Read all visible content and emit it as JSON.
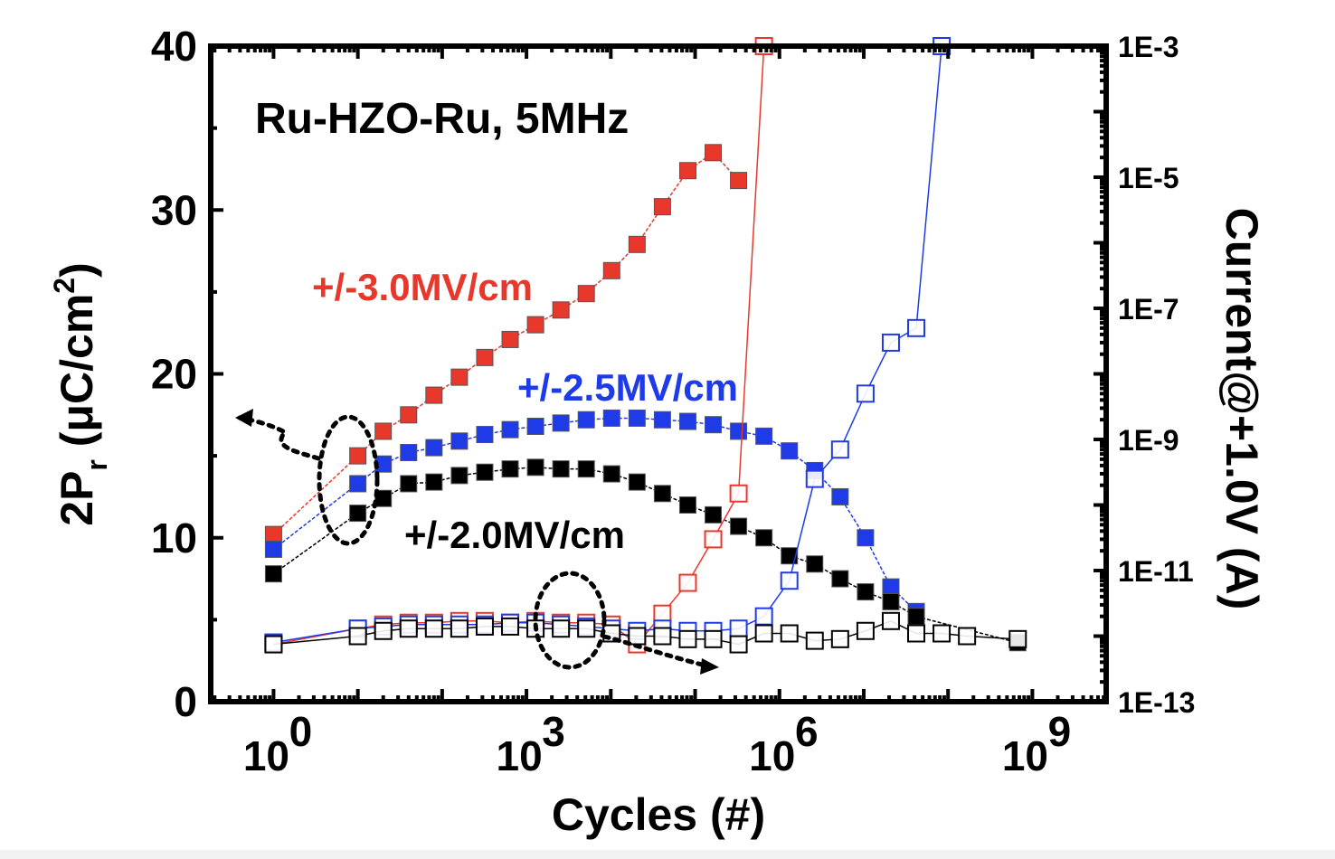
{
  "chart_data": {
    "type": "scatter",
    "title": "Ru-HZO-Ru, 5MHz",
    "xlabel": "Cycles (#)",
    "ylabel_main": "2P",
    "ylabel_sub": "r",
    "ylabel_rest": " (μC/cm",
    "ylabel_sup": "2",
    "ylabel_end": ")",
    "y2label": "Current@+1.0V (A)",
    "xscale": "log",
    "xlim": [
      0.18,
      7500000000.0
    ],
    "ylim": [
      0,
      40
    ],
    "y2scale": "log",
    "y2lim": [
      1e-13,
      0.001
    ],
    "x_ticks": [
      {
        "v": 1,
        "base": "10",
        "exp": "0"
      },
      {
        "v": 1000,
        "base": "10",
        "exp": "3"
      },
      {
        "v": 1000000,
        "base": "10",
        "exp": "6"
      },
      {
        "v": 1000000000,
        "base": "10",
        "exp": "9"
      }
    ],
    "y_ticks": [
      "0",
      "10",
      "20",
      "30",
      "40"
    ],
    "y2_ticks": [
      "1E-13",
      "1E-11",
      "1E-9",
      "1E-7",
      "1E-5",
      "1E-3"
    ],
    "annotations": [
      {
        "text": "+/-3.0MV/cm",
        "color": "#e8382c"
      },
      {
        "text": "+/-2.5MV/cm",
        "color": "#1f3be8"
      },
      {
        "text": "+/-2.0MV/cm",
        "color": "#000000"
      }
    ],
    "series": [
      {
        "axis": "left",
        "fill": "filled",
        "color": "#e8382c",
        "x": [
          1,
          10,
          20,
          40,
          80,
          160,
          320,
          640,
          1280,
          2560,
          5120,
          10240,
          20480,
          40960,
          81920,
          163840,
          327680,
          655360,
          983040
        ],
        "y": [
          10.2,
          15.0,
          16.5,
          17.5,
          18.7,
          19.8,
          21.0,
          22.1,
          23.0,
          23.9,
          24.9,
          26.3,
          27.9,
          30.2,
          32.4,
          33.5,
          31.8,
          null,
          null
        ]
      },
      {
        "axis": "left",
        "fill": "filled",
        "color": "#1f3be8",
        "x": [
          1,
          10,
          20,
          40,
          80,
          160,
          320,
          640,
          1280,
          2560,
          5120,
          10240,
          20480,
          40960,
          81920,
          163840,
          327680,
          655360,
          1310720,
          2621440,
          5242880,
          10485760,
          20971520,
          41943040,
          83886080
        ],
        "y": [
          9.3,
          13.3,
          14.5,
          15.2,
          15.5,
          15.9,
          16.3,
          16.6,
          16.8,
          17.0,
          17.2,
          17.3,
          17.3,
          17.2,
          17.1,
          16.9,
          16.5,
          16.2,
          15.3,
          14.1,
          12.5,
          10.0,
          7.0,
          5.5,
          null
        ]
      },
      {
        "axis": "left",
        "fill": "filled",
        "color": "#000000",
        "x": [
          1,
          10,
          20,
          40,
          80,
          160,
          320,
          640,
          1280,
          2560,
          5120,
          10240,
          20480,
          40960,
          81920,
          163840,
          327680,
          655360,
          1310720,
          2621440,
          5242880,
          10485760,
          20971520,
          41943040,
          83886080,
          167772160,
          671088640
        ],
        "y": [
          7.8,
          11.5,
          12.4,
          13.3,
          13.4,
          13.8,
          14.0,
          14.2,
          14.3,
          14.2,
          14.2,
          13.9,
          13.4,
          12.7,
          12.0,
          11.4,
          10.7,
          10.0,
          8.9,
          8.4,
          7.5,
          6.7,
          6.1,
          5.2,
          null,
          null,
          3.6
        ]
      },
      {
        "axis": "right",
        "fill": "open",
        "color": "#e8382c",
        "x": [
          1,
          10,
          20,
          40,
          80,
          160,
          320,
          640,
          1280,
          2560,
          5120,
          10240,
          20480,
          40960,
          81920,
          163840,
          327680,
          655360,
          983040,
          1120000
        ],
        "y": [
          7.5e-13,
          1.3e-12,
          1.5e-12,
          1.6e-12,
          1.6e-12,
          1.7e-12,
          1.7e-12,
          1.6e-12,
          1.7e-12,
          1.6e-12,
          1.6e-12,
          1.5e-12,
          7.5e-13,
          2.2e-12,
          6.5e-12,
          3e-11,
          1.5e-10,
          0.001,
          null,
          null
        ]
      },
      {
        "axis": "right",
        "fill": "open",
        "color": "#1f3be8",
        "x": [
          1,
          10,
          20,
          40,
          80,
          160,
          320,
          640,
          1280,
          2560,
          5120,
          10240,
          20480,
          40960,
          81920,
          163840,
          327680,
          655360,
          1310720,
          2621440,
          5242880,
          10485760,
          20971520,
          41943040,
          83886080
        ],
        "y": [
          8e-13,
          1.3e-12,
          1.4e-12,
          1.5e-12,
          1.5e-12,
          1.5e-12,
          1.5e-12,
          1.6e-12,
          1.6e-12,
          1.5e-12,
          1.4e-12,
          1.3e-12,
          1.2e-12,
          1.3e-12,
          1.2e-12,
          1.2e-12,
          1.3e-12,
          2e-12,
          7e-12,
          2.5e-10,
          7e-10,
          5e-09,
          3e-08,
          5e-08,
          0.001
        ]
      },
      {
        "axis": "right",
        "fill": "open",
        "color": "#000000",
        "x": [
          1,
          10,
          20,
          40,
          80,
          160,
          320,
          640,
          1280,
          2560,
          5120,
          10240,
          20480,
          40960,
          81920,
          163840,
          327680,
          655360,
          1310720,
          2621440,
          5242880,
          10485760,
          20971520,
          41943040,
          83886080,
          167772160,
          671088640
        ],
        "y": [
          7.5e-13,
          1e-12,
          1.2e-12,
          1.3e-12,
          1.3e-12,
          1.3e-12,
          1.4e-12,
          1.4e-12,
          1.3e-12,
          1.3e-12,
          1.3e-12,
          1.1e-12,
          1e-12,
          1e-12,
          9e-13,
          9e-13,
          7.5e-13,
          1.1e-12,
          1.1e-12,
          8.5e-13,
          9e-13,
          1.2e-12,
          1.7e-12,
          1.1e-12,
          1.1e-12,
          1e-12,
          9e-13
        ]
      }
    ]
  }
}
